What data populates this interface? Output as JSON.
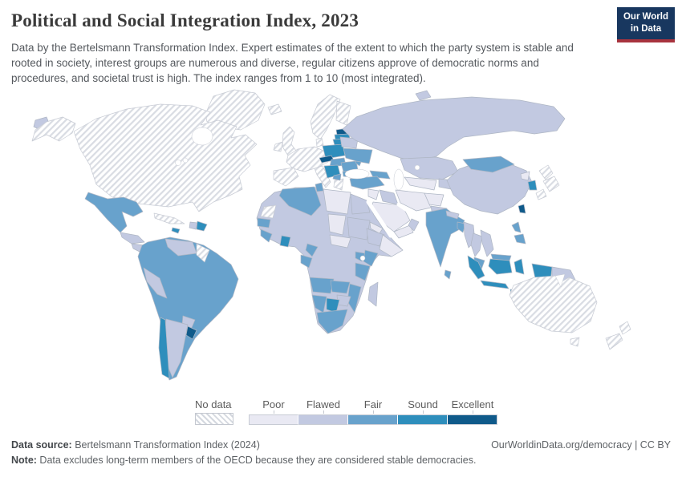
{
  "header": {
    "title": "Political and Social Integration Index, 2023",
    "subtitle": "Data by the Bertelsmann Transformation Index. Expert estimates of the extent to which the party system is stable and rooted in society, interest groups are numerous and diverse, regular citizens approve of democratic norms and procedures, and societal trust is high. The index ranges from 1 to 10 (most integrated).",
    "logo": {
      "line1": "Our World",
      "line2": "in Data"
    }
  },
  "legend": {
    "no_data_label": "No data",
    "bins": [
      {
        "label": "Poor",
        "color": "#e9e9f3"
      },
      {
        "label": "Flawed",
        "color": "#c2c9e1"
      },
      {
        "label": "Fair",
        "color": "#68a2cc"
      },
      {
        "label": "Sound",
        "color": "#2e8ebc"
      },
      {
        "label": "Excellent",
        "color": "#0f5a8a"
      }
    ]
  },
  "footer": {
    "source_label": "Data source:",
    "source_text": " Bertelsmann Transformation Index (2024)",
    "link_text": "OurWorldinData.org/democracy | CC BY",
    "note_label": "Note:",
    "note_text": " Data excludes long-term members of the OECD because they are considered stable democracies."
  },
  "chart_data": {
    "type": "heatmap",
    "subtype": "world-choropleth",
    "title": "Political and Social Integration Index, 2023",
    "index_range": [
      1,
      10
    ],
    "categories": [
      "No data",
      "Poor",
      "Flawed",
      "Fair",
      "Sound",
      "Excellent"
    ],
    "legend_position": "bottom",
    "palette": {
      "no_data": "hatch",
      "poor": "#e9e9f3",
      "flawed": "#c2c9e1",
      "fair": "#68a2cc",
      "sound": "#2e8ebc",
      "excellent": "#0f5a8a"
    },
    "regions": {
      "greenland": "no_data",
      "alaska": "no_data",
      "canada-usa": "no_data",
      "chukotka": "flawed",
      "mexico": "fair",
      "guatemala-honduras": "flawed",
      "nicaragua": "flawed",
      "costa-rica-panama": "sound",
      "cuba": "no_data",
      "jamaica": "sound",
      "haiti": "flawed",
      "dominican-republic": "sound",
      "south-america-core": "fair",
      "venezuela": "flawed",
      "guyana-suriname": "no_data",
      "peru": "flawed",
      "paraguay": "flawed",
      "argentina": "flawed",
      "chile": "sound",
      "uruguay": "excellent",
      "iceland": "no_data",
      "united-kingdom": "no_data",
      "ireland": "no_data",
      "norway-sweden": "no_data",
      "finland": "no_data",
      "denmark": "no_data",
      "western-europe": "no_data",
      "iberia": "no_data",
      "italy": "no_data",
      "greece": "no_data",
      "estonia": "excellent",
      "latvia": "sound",
      "lithuania": "sound",
      "poland": "sound",
      "czechia": "excellent",
      "slovakia-hungary": "fair",
      "balkans": "sound",
      "albania-north-macedonia": "fair",
      "romania": "fair",
      "bulgaria": "fair",
      "moldova": "fair",
      "belarus": "flawed",
      "ukraine": "fair",
      "russia": "flawed",
      "novaya-zemlya": "flawed",
      "kazakhstan": "flawed",
      "caucasus": "fair",
      "turkey": "fair",
      "levant": "poor",
      "iraq": "flawed",
      "saudi-arabia": "poor",
      "yemen": "poor",
      "oman": "flawed",
      "iran": "poor",
      "afghanistan": "poor",
      "turkmenistan-uzbekistan": "poor",
      "kyrgyzstan-tajikistan": "flawed",
      "pakistan": "flawed",
      "india": "fair",
      "nepal": "flawed",
      "bangladesh": "fair",
      "sri-lanka": "fair",
      "china": "flawed",
      "mongolia": "fair",
      "north-korea": "poor",
      "south-korea": "sound",
      "taiwan": "excellent",
      "japan": "no_data",
      "myanmar": "flawed",
      "thailand": "flawed",
      "vietnam-laos": "flawed",
      "malaysia": "fair",
      "philippines": "fair",
      "indonesia": "sound",
      "papua-new-guinea": "flawed",
      "africa-interior": "flawed",
      "algeria": "fair",
      "tunisia": "fair",
      "western-sahara": "no_data",
      "libya": "poor",
      "egypt": "flawed",
      "chad": "poor",
      "sudan": "flawed",
      "central-african-republic": "poor",
      "ethiopia": "flawed",
      "somalia": "poor",
      "eritrea-djibouti": "poor",
      "senegal": "fair",
      "sierra-leone-liberia": "fair",
      "ghana": "sound",
      "cameroon": "fair",
      "gabon-congo": "fair",
      "uganda-rwanda": "fair",
      "kenya": "fair",
      "tanzania": "fair",
      "angola": "fair",
      "zambia": "fair",
      "malawi-mozambique": "fair",
      "zimbabwe": "flawed",
      "botswana": "sound",
      "namibia": "fair",
      "south-africa": "fair",
      "madagascar": "flawed",
      "australia": "no_data",
      "tasmania": "no_data",
      "new-zealand": "no_data"
    }
  }
}
